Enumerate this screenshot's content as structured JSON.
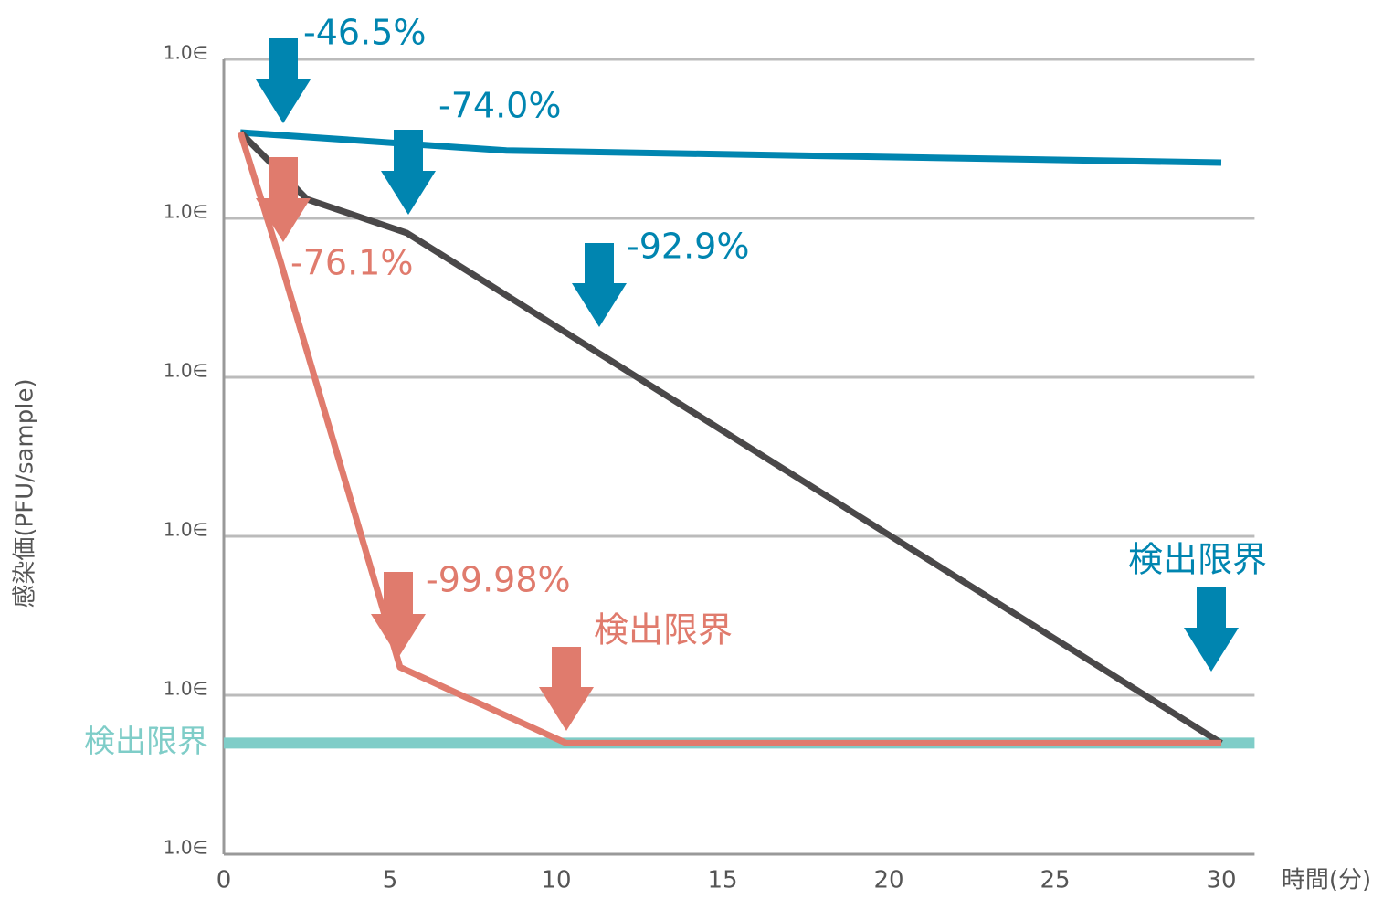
{
  "chart_data": {
    "type": "line",
    "y_label": "感染価(PFU/sample)",
    "x_label": "時間(分)",
    "xlim": [
      0,
      31
    ],
    "xticks": [
      0,
      5,
      10,
      15,
      20,
      25,
      30
    ],
    "ylim": [
      1,
      100000
    ],
    "log_y": true,
    "grid": true,
    "yticks": [
      {
        "value": 1,
        "label": "1.0∈"
      },
      {
        "value": 10,
        "label": "1.0∈"
      },
      {
        "value": 100,
        "label": "1.0∈"
      },
      {
        "value": 1000,
        "label": "1.0∈"
      },
      {
        "value": 10000,
        "label": "1.0∈"
      },
      {
        "value": 100000,
        "label": "1.0∈"
      }
    ],
    "threshold": {
      "label": "検出限界",
      "value": 5,
      "color": "#7fcdc8"
    },
    "series": [
      {
        "color": "#0085b0",
        "x": [
          0.5,
          8.5,
          30
        ],
        "values": [
          34700,
          26700,
          22400
        ]
      },
      {
        "color": "#4a4849",
        "x": [
          0.5,
          2.5,
          5.5,
          30
        ],
        "values": [
          34700,
          13200,
          8100,
          5
        ]
      },
      {
        "color": "#e07b6d",
        "x": [
          0.5,
          1.7,
          5.3,
          10.3,
          30
        ],
        "values": [
          34700,
          5400,
          15,
          5,
          5
        ]
      }
    ],
    "annotations": [
      {
        "text": "-46.5%",
        "color": "#0085b0"
      },
      {
        "text": "-74.0%",
        "color": "#0085b0"
      },
      {
        "text": "-92.9%",
        "color": "#0085b0"
      },
      {
        "text": "検出限界",
        "color": "#0085b0"
      },
      {
        "text": "-76.1%",
        "color": "#e07b6d"
      },
      {
        "text": "-99.98%",
        "color": "#e07b6d"
      },
      {
        "text": "検出限界",
        "color": "#e07b6d"
      }
    ]
  }
}
